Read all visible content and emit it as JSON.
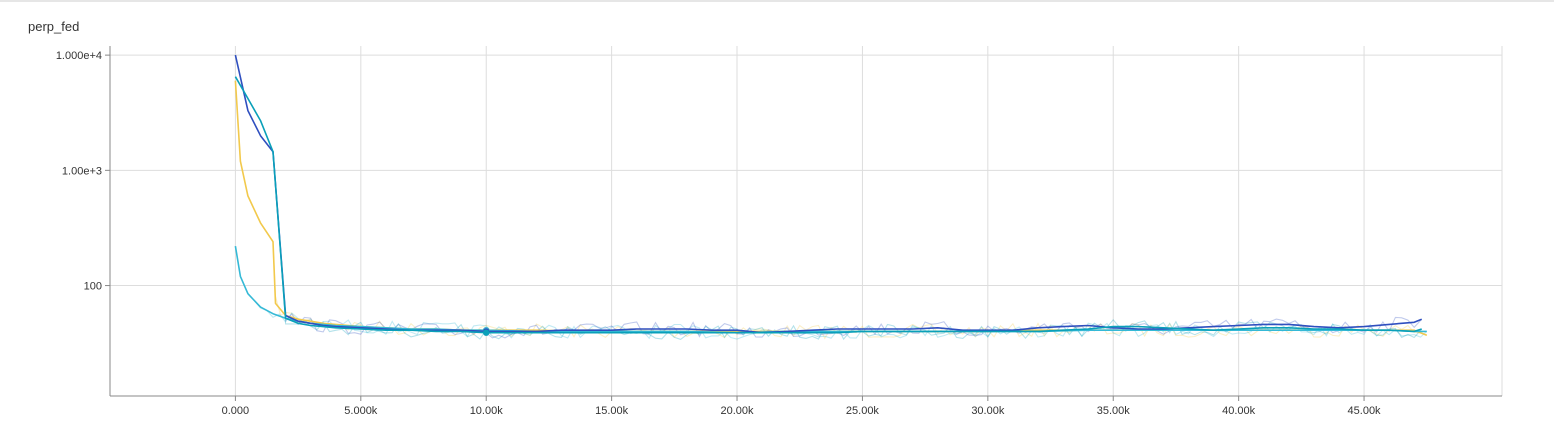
{
  "chart_data": {
    "type": "line",
    "title": "perp_fed",
    "xlabel": "",
    "ylabel": "",
    "xlim": [
      -5000,
      50500
    ],
    "ylim": [
      11,
      12000
    ],
    "y_scale": "log",
    "grid": true,
    "x_ticks": [
      {
        "value": 0,
        "label": "0.000"
      },
      {
        "value": 5000,
        "label": "5.000k"
      },
      {
        "value": 10000,
        "label": "10.00k"
      },
      {
        "value": 15000,
        "label": "15.00k"
      },
      {
        "value": 20000,
        "label": "20.00k"
      },
      {
        "value": 25000,
        "label": "25.00k"
      },
      {
        "value": 30000,
        "label": "30.00k"
      },
      {
        "value": 35000,
        "label": "35.00k"
      },
      {
        "value": 40000,
        "label": "40.00k"
      },
      {
        "value": 45000,
        "label": "45.00k"
      }
    ],
    "y_ticks": [
      {
        "value": 10000,
        "label": "1.000e+4"
      },
      {
        "value": 1000,
        "label": "1.00e+3"
      },
      {
        "value": 100,
        "label": "100"
      }
    ],
    "series": [
      {
        "color": "#f2c94c",
        "x": [
          0,
          200,
          500,
          1000,
          1500,
          1600,
          2000,
          2500,
          3000,
          3500,
          4000,
          5000,
          6000,
          7000,
          8000,
          9000,
          10000,
          12000,
          14000,
          16000,
          18000,
          20000,
          22000,
          24000,
          26000,
          28000,
          30000,
          32000,
          34000,
          36000,
          38000,
          40000,
          42000,
          44000,
          46000,
          47000,
          47500
        ],
        "y": [
          6000,
          1200,
          600,
          350,
          240,
          70,
          55,
          51,
          49,
          47,
          46,
          44,
          43,
          42,
          42,
          41,
          41,
          41,
          40,
          40,
          40,
          40,
          40,
          40,
          40,
          40,
          40,
          41,
          41,
          41,
          41,
          41,
          41,
          41,
          41,
          41,
          37
        ]
      },
      {
        "color": "#35b9d6",
        "x": [
          0,
          200,
          500,
          1000,
          1500,
          2000,
          2500,
          3000,
          3500,
          4000,
          5000,
          6000,
          7000,
          8000,
          9000,
          10000,
          12000,
          14000,
          16000,
          18000,
          20000,
          22000,
          24000,
          26000,
          28000,
          30000,
          32000,
          34000,
          36000,
          38000,
          40000,
          42000,
          44000,
          46000,
          47000,
          47500
        ],
        "y": [
          220,
          120,
          85,
          65,
          57,
          52,
          49,
          47,
          46,
          45,
          44,
          43,
          42,
          42,
          41,
          41,
          40,
          40,
          40,
          40,
          39,
          40,
          40,
          40,
          40,
          40,
          40,
          41,
          41,
          41,
          41,
          41,
          41,
          41,
          40,
          40
        ]
      },
      {
        "color": "#2f4fbf",
        "x": [
          0,
          500,
          1000,
          1500,
          2000,
          2500,
          3000,
          3500,
          4000,
          5000,
          6000,
          7000,
          8000,
          9000,
          10000,
          11000,
          12000,
          13000,
          14000,
          15000,
          16000,
          17000,
          18000,
          19000,
          20000,
          21000,
          22000,
          23000,
          24000,
          25000,
          26000,
          27000,
          28000,
          29000,
          30000,
          31000,
          32000,
          33000,
          34000,
          35000,
          36000,
          37000,
          38000,
          39000,
          40000,
          41000,
          42000,
          43000,
          44000,
          45000,
          46000,
          47000,
          47300
        ],
        "y": [
          10000,
          3300,
          2000,
          1450,
          55,
          49,
          47,
          45,
          44,
          43,
          42,
          41,
          41,
          41,
          40,
          40,
          40,
          41,
          41,
          41,
          42,
          42,
          42,
          41,
          41,
          39,
          40,
          41,
          42,
          42,
          42,
          42,
          43,
          41,
          41,
          41,
          43,
          44,
          45,
          43,
          42,
          42,
          43,
          44,
          45,
          46,
          46,
          44,
          43,
          44,
          46,
          48,
          51
        ]
      },
      {
        "color": "#0aa0b9",
        "x": [
          0,
          500,
          1000,
          1500,
          2000,
          2500,
          3000,
          3500,
          4000,
          5000,
          6000,
          7000,
          8000,
          9000,
          10000,
          11000,
          12000,
          13000,
          14000,
          15000,
          16000,
          17000,
          18000,
          19000,
          20000,
          21000,
          22000,
          23000,
          24000,
          25000,
          26000,
          27000,
          28000,
          29000,
          30000,
          31000,
          32000,
          33000,
          34000,
          35000,
          36000,
          37000,
          38000,
          39000,
          40000,
          41000,
          42000,
          43000,
          44000,
          45000,
          46000,
          47000,
          47300
        ],
        "y": [
          6500,
          4200,
          2700,
          1450,
          52,
          47,
          45,
          44,
          43,
          42,
          41,
          41,
          40,
          40,
          39,
          39,
          39,
          39,
          39,
          39,
          39,
          39,
          39,
          39,
          39,
          39,
          39,
          39,
          39,
          40,
          40,
          40,
          40,
          40,
          40,
          40,
          40,
          41,
          42,
          44,
          44,
          43,
          42,
          41,
          42,
          43,
          43,
          42,
          42,
          41,
          41,
          40,
          42
        ]
      }
    ]
  }
}
